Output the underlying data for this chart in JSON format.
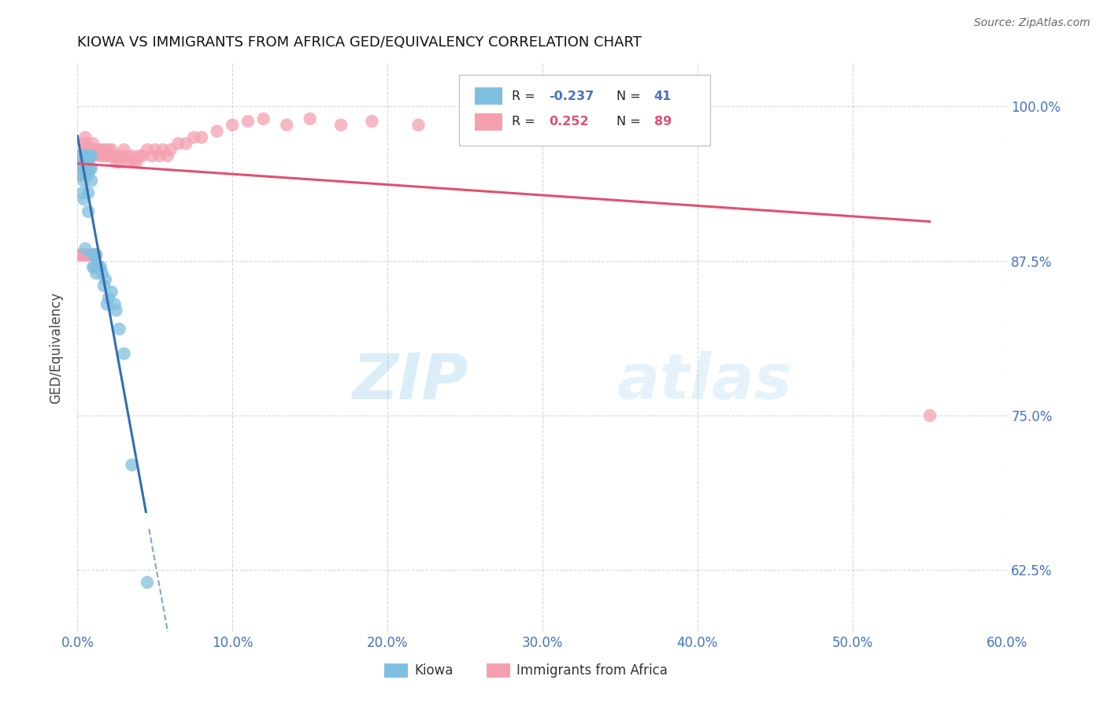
{
  "title": "KIOWA VS IMMIGRANTS FROM AFRICA GED/EQUIVALENCY CORRELATION CHART",
  "source": "Source: ZipAtlas.com",
  "xlim": [
    0.0,
    0.6
  ],
  "ylim": [
    0.575,
    1.035
  ],
  "ylabel": "GED/Equivalency",
  "blue_color": "#7fbfdf",
  "pink_color": "#f4a0b0",
  "blue_line_color": "#3070b0",
  "pink_line_color": "#e05070",
  "background_color": "#ffffff",
  "kiowa_x": [
    0.001,
    0.002,
    0.003,
    0.003,
    0.004,
    0.004,
    0.004,
    0.005,
    0.005,
    0.005,
    0.006,
    0.006,
    0.007,
    0.007,
    0.007,
    0.008,
    0.008,
    0.009,
    0.009,
    0.009,
    0.01,
    0.01,
    0.011,
    0.011,
    0.012,
    0.012,
    0.013,
    0.014,
    0.015,
    0.016,
    0.017,
    0.018,
    0.019,
    0.02,
    0.022,
    0.024,
    0.025,
    0.027,
    0.03,
    0.035,
    0.045
  ],
  "kiowa_y": [
    0.96,
    0.95,
    0.945,
    0.93,
    0.955,
    0.94,
    0.925,
    0.96,
    0.95,
    0.885,
    0.96,
    0.95,
    0.945,
    0.93,
    0.915,
    0.96,
    0.95,
    0.96,
    0.95,
    0.94,
    0.88,
    0.87,
    0.88,
    0.87,
    0.88,
    0.865,
    0.87,
    0.87,
    0.87,
    0.865,
    0.855,
    0.86,
    0.84,
    0.845,
    0.85,
    0.84,
    0.835,
    0.82,
    0.8,
    0.71,
    0.615
  ],
  "africa_x": [
    0.001,
    0.001,
    0.002,
    0.002,
    0.002,
    0.002,
    0.003,
    0.003,
    0.003,
    0.003,
    0.003,
    0.004,
    0.004,
    0.004,
    0.004,
    0.004,
    0.005,
    0.005,
    0.005,
    0.005,
    0.005,
    0.005,
    0.006,
    0.006,
    0.006,
    0.006,
    0.006,
    0.007,
    0.007,
    0.007,
    0.007,
    0.008,
    0.008,
    0.008,
    0.009,
    0.009,
    0.009,
    0.01,
    0.01,
    0.01,
    0.011,
    0.011,
    0.012,
    0.012,
    0.013,
    0.014,
    0.015,
    0.016,
    0.017,
    0.018,
    0.019,
    0.02,
    0.021,
    0.022,
    0.023,
    0.024,
    0.025,
    0.027,
    0.028,
    0.03,
    0.032,
    0.033,
    0.035,
    0.036,
    0.038,
    0.04,
    0.042,
    0.045,
    0.048,
    0.05,
    0.053,
    0.055,
    0.058,
    0.06,
    0.065,
    0.07,
    0.075,
    0.08,
    0.09,
    0.1,
    0.11,
    0.12,
    0.135,
    0.15,
    0.17,
    0.19,
    0.22,
    0.26,
    0.55
  ],
  "africa_y": [
    0.96,
    0.88,
    0.96,
    0.95,
    0.945,
    0.88,
    0.96,
    0.955,
    0.95,
    0.945,
    0.88,
    0.97,
    0.96,
    0.955,
    0.945,
    0.88,
    0.975,
    0.965,
    0.96,
    0.955,
    0.95,
    0.88,
    0.97,
    0.965,
    0.96,
    0.95,
    0.88,
    0.965,
    0.96,
    0.955,
    0.88,
    0.965,
    0.96,
    0.88,
    0.965,
    0.96,
    0.88,
    0.97,
    0.96,
    0.88,
    0.965,
    0.88,
    0.965,
    0.88,
    0.965,
    0.96,
    0.965,
    0.96,
    0.965,
    0.96,
    0.96,
    0.965,
    0.96,
    0.965,
    0.96,
    0.96,
    0.955,
    0.955,
    0.96,
    0.965,
    0.96,
    0.955,
    0.96,
    0.955,
    0.955,
    0.96,
    0.96,
    0.965,
    0.96,
    0.965,
    0.96,
    0.965,
    0.96,
    0.965,
    0.97,
    0.97,
    0.975,
    0.975,
    0.98,
    0.985,
    0.988,
    0.99,
    0.985,
    0.99,
    0.985,
    0.988,
    0.985,
    0.988,
    0.75
  ]
}
